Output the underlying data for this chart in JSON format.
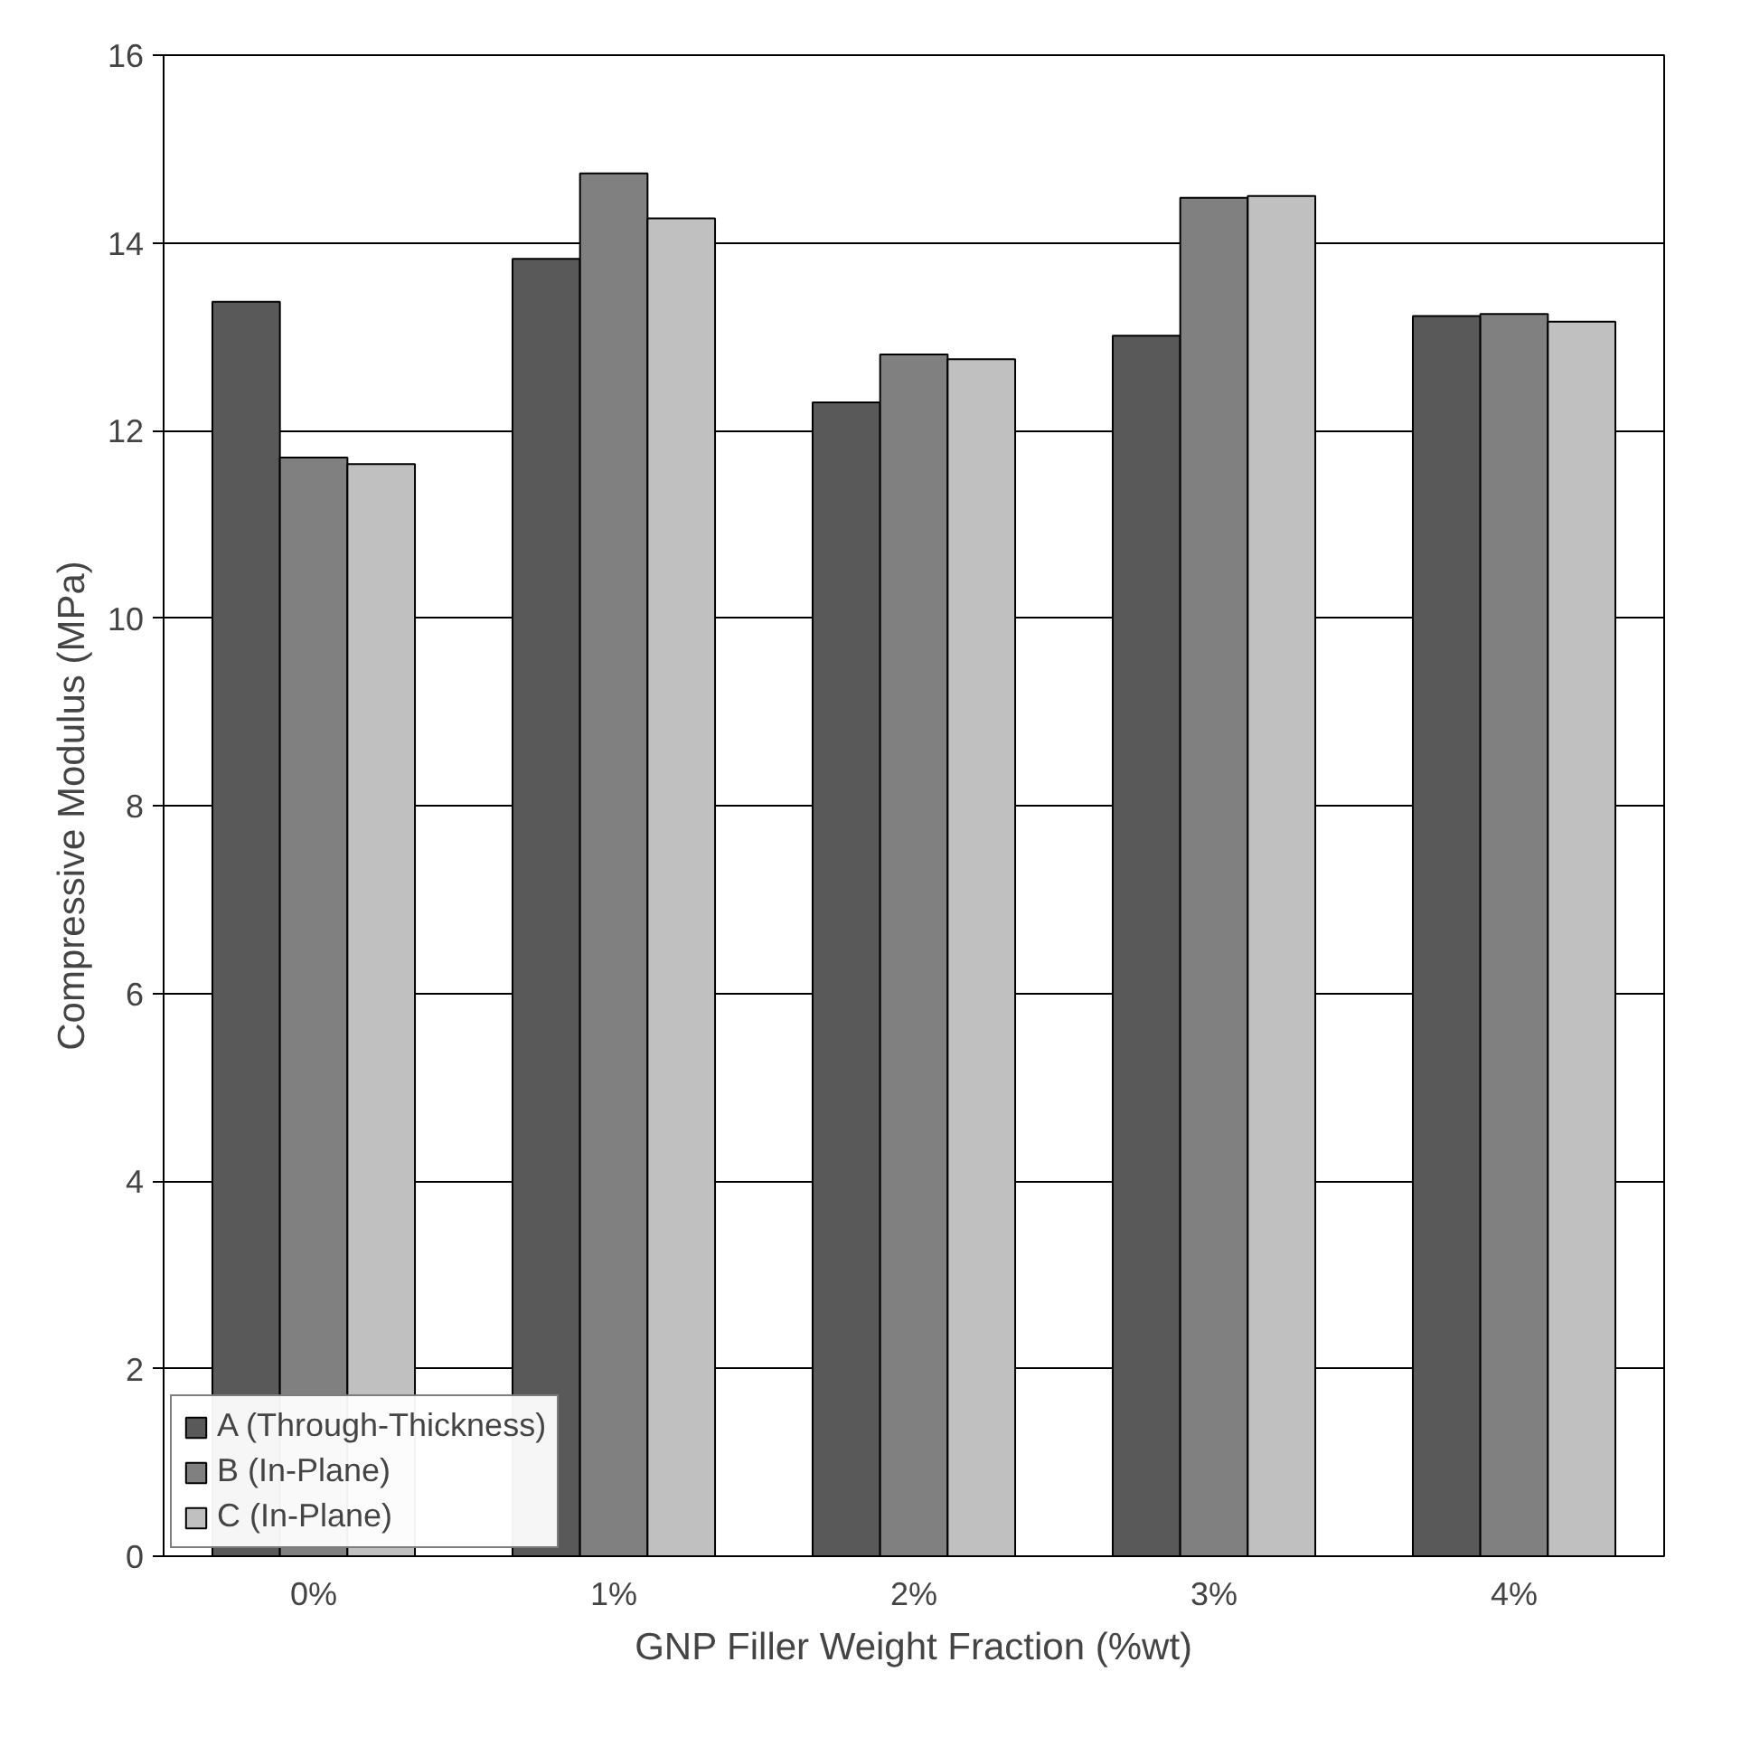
{
  "chart_data": {
    "type": "bar",
    "xlabel": "GNP Filler Weight Fraction (%wt)",
    "ylabel": "Compressive Modulus (MPa)",
    "categories": [
      "0%",
      "1%",
      "2%",
      "3%",
      "4%"
    ],
    "series": [
      {
        "name": "A (Through-Thickness)",
        "color": "#595959",
        "values": [
          13.37,
          13.83,
          12.3,
          13.01,
          13.22
        ]
      },
      {
        "name": "B (In-Plane)",
        "color": "#808080",
        "values": [
          11.71,
          14.74,
          12.81,
          14.48,
          13.24
        ]
      },
      {
        "name": "C (In-Plane)",
        "color": "#c0c0c0",
        "values": [
          11.64,
          14.26,
          12.76,
          14.5,
          13.16
        ]
      }
    ],
    "ylim": [
      0,
      16
    ],
    "yticks": [
      0,
      2,
      4,
      6,
      8,
      10,
      12,
      14,
      16
    ],
    "grid": "y",
    "legend": "bottom left"
  }
}
